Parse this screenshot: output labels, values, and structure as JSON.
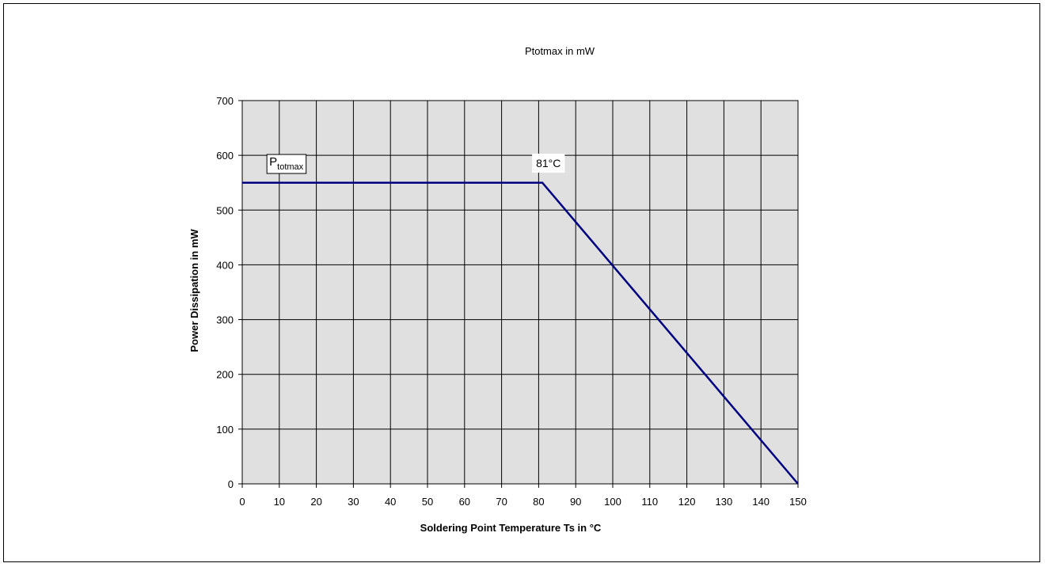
{
  "chart_data": {
    "type": "line",
    "title": "Ptotmax  in mW",
    "xlabel": "Soldering Point Temperature Ts  in  °C",
    "ylabel": "Power Dissipation  in   mW",
    "xlim": [
      0,
      150
    ],
    "ylim": [
      0,
      700
    ],
    "x_ticks": [
      "0",
      "10",
      "20",
      "30",
      "40",
      "50",
      "60",
      "70",
      "80",
      "90",
      "100",
      "110",
      "120",
      "130",
      "140",
      "150"
    ],
    "y_ticks": [
      "0",
      "100",
      "200",
      "300",
      "400",
      "500",
      "600",
      "700"
    ],
    "grid": true,
    "series": [
      {
        "x": [
          0,
          81,
          150
        ],
        "y": [
          550,
          550,
          0
        ],
        "color": "#000080"
      }
    ],
    "annotations": [
      {
        "text_main": "P",
        "text_sub": "totmax",
        "x": 10.5,
        "y": 590
      },
      {
        "text": "81°C",
        "x": 82,
        "y": 590
      }
    ],
    "colors": {
      "plot_bg": "#e0e0e0",
      "grid": "#000000",
      "line": "#000080"
    }
  }
}
